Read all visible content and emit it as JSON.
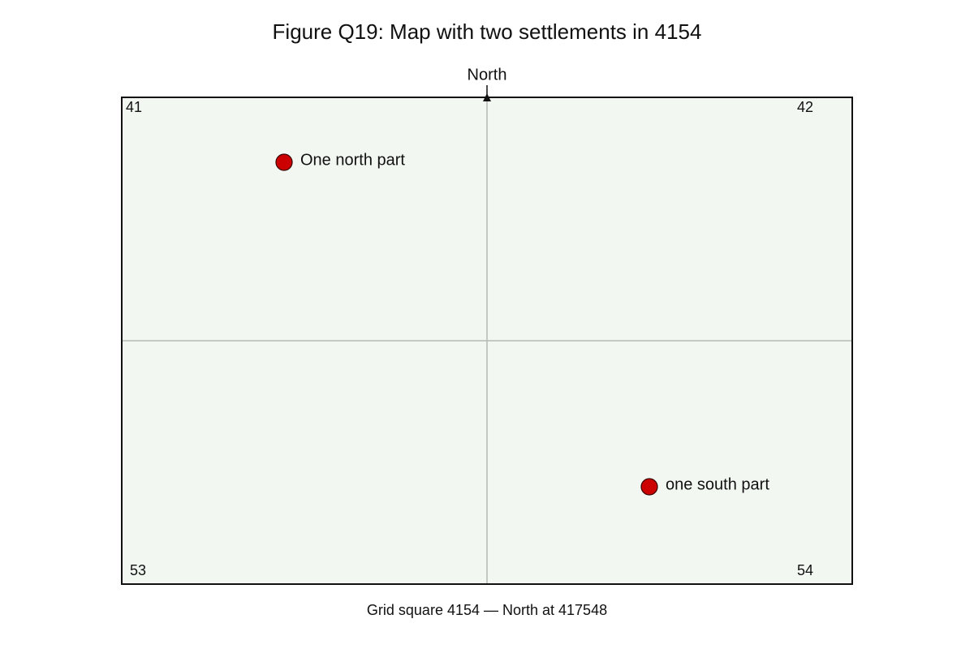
{
  "header": {
    "title": "Figure Q19: Map with two settlements in 4154"
  },
  "map": {
    "north_label": "North",
    "corners": [
      "41",
      "42",
      "53",
      "54"
    ],
    "settlements": [
      {
        "label": "One north part"
      },
      {
        "label": "one south part"
      }
    ]
  },
  "caption": "Grid square 4154 — North at 417548"
}
